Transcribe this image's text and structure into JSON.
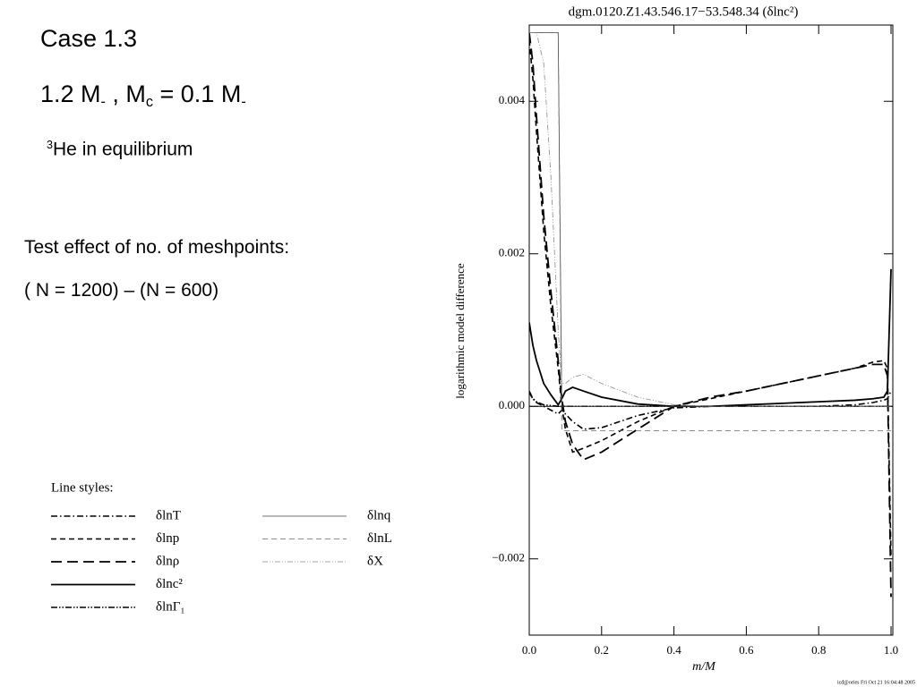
{
  "slide": {
    "heading": "Case 1.3",
    "mass_line": [
      "1.2 M",
      "-",
      " , M",
      "c",
      " = 0.1 M",
      "-"
    ],
    "he_line": [
      "3",
      "He in equilibrium"
    ],
    "test_line": "Test effect of no. of meshpoints:",
    "diff_line": "( N = 1200) – (N = 600)"
  },
  "chart_data": {
    "type": "line",
    "title": "dgm.0120.Z1.43.546.17−53.548.34   (δlnc²)",
    "x_label": "m/M",
    "y_label": "logarithmic model difference",
    "footer": "icd@ories Fri Oct 21 16:04:48 2005",
    "legend_title": "Line styles:",
    "xlim": [
      0,
      1
    ],
    "ylim": [
      -0.003,
      0.005
    ],
    "xticks": [
      {
        "value": 0,
        "label": "0.0"
      },
      0.2,
      0.4,
      0.6,
      0.8,
      {
        "value": 1,
        "label": "1.0"
      }
    ],
    "yticks": [
      {
        "value": -0.002,
        "label": "−0.002"
      },
      {
        "value": 0,
        "label": "0.000"
      },
      0.002,
      0.004
    ],
    "zero_line": true,
    "x": [
      0,
      0.01,
      0.02,
      0.04,
      0.06,
      0.08,
      0.09,
      0.1,
      0.12,
      0.15,
      0.2,
      0.3,
      0.4,
      0.5,
      0.6,
      0.7,
      0.8,
      0.9,
      0.95,
      0.98,
      0.99,
      1.0
    ],
    "series": [
      {
        "name": "δlnT",
        "color": "#000000",
        "dash": "7 3 1.5 3",
        "width": 1.6,
        "values": [
          0.0002,
          0.0001,
          5e-05,
          0.0,
          -5e-05,
          -0.0001,
          -5e-05,
          -0.0001,
          -0.0002,
          -0.0003,
          -0.00028,
          -0.00012,
          -2e-05,
          0.0,
          0.0,
          0.0,
          0.0,
          2e-05,
          5e-05,
          8e-05,
          0.0001,
          0.0002
        ]
      },
      {
        "name": "δlnp",
        "color": "#000000",
        "dash": "6 4",
        "width": 1.6,
        "values": [
          0.0048,
          0.0043,
          0.0036,
          0.0023,
          0.0013,
          0.0005,
          0.0,
          -0.0003,
          -0.0006,
          -0.00055,
          -0.00045,
          -0.0002,
          0.0,
          0.0001,
          0.0002,
          0.0003,
          0.0004,
          0.0005,
          0.00058,
          0.0006,
          0.0005,
          -0.002
        ]
      },
      {
        "name": "δlnρ",
        "color": "#000000",
        "dash": "12 6",
        "width": 1.8,
        "values": [
          0.0049,
          0.0045,
          0.0038,
          0.0025,
          0.0015,
          0.0006,
          0.0001,
          -0.0002,
          -0.0005,
          -0.0007,
          -0.0006,
          -0.0003,
          0.0,
          0.00012,
          0.0002,
          0.0003,
          0.0004,
          0.0005,
          0.00055,
          0.00055,
          0.0004,
          -0.0025
        ]
      },
      {
        "name": "δlnc²",
        "color": "#000000",
        "dash": "none",
        "width": 1.8,
        "values": [
          0.0011,
          0.0008,
          0.0006,
          0.0003,
          0.00015,
          2e-05,
          0.0001,
          0.0002,
          0.00025,
          0.0002,
          0.00012,
          3e-05,
          0.0,
          0.0,
          2e-05,
          4e-05,
          6e-05,
          8e-05,
          0.0001,
          0.00012,
          0.0002,
          0.0018
        ]
      },
      {
        "name": "δlnΓ₁",
        "color": "#000000",
        "dash": "7 2 1.5 2 1.5 2",
        "width": 1.6,
        "values": [
          0.00018,
          0.0001,
          6e-05,
          2e-05,
          1e-05,
          0.0,
          0.0,
          0.0,
          0.0,
          0.0,
          0.0,
          0.0,
          0.0,
          0.0,
          0.0,
          0.0,
          0.0,
          0.0,
          0.0,
          0.0,
          0.0,
          0.0
        ]
      },
      {
        "name": "δlnq",
        "color": "#444444",
        "dash": "none",
        "width": 0.8,
        "values": [
          0.0049,
          0.0049,
          0.0049,
          0.0049,
          0.0049,
          0.0049,
          0.0,
          0.0,
          0.0,
          0.0,
          0.0,
          0.0,
          0.0,
          0.0,
          0.0,
          0.0,
          0.0,
          0.0,
          0.0,
          0.0,
          0.0,
          0.0
        ]
      },
      {
        "name": "δlnL",
        "color": "#666666",
        "dash": "6 4",
        "width": 0.8,
        "values": [
          0.0049,
          0.0049,
          0.0049,
          0.0049,
          0.0049,
          0.0049,
          -0.00032,
          -0.00032,
          -0.00032,
          -0.00032,
          -0.00032,
          -0.00032,
          -0.00032,
          -0.00032,
          -0.00032,
          -0.00032,
          -0.00032,
          -0.00032,
          -0.00032,
          -0.00032,
          -0.00032,
          -0.00032
        ]
      },
      {
        "name": "δX",
        "color": "#888888",
        "dash": "6 2 1 2 1 2",
        "width": 0.8,
        "values": [
          0.0049,
          0.0049,
          0.0049,
          0.0045,
          0.003,
          0.001,
          0.0003,
          0.0003,
          0.00038,
          0.00042,
          0.0003,
          0.00012,
          2e-05,
          0.0,
          0.0,
          0.0,
          0.0,
          0.0,
          0.0,
          0.0,
          0.0,
          0.0
        ]
      }
    ]
  }
}
